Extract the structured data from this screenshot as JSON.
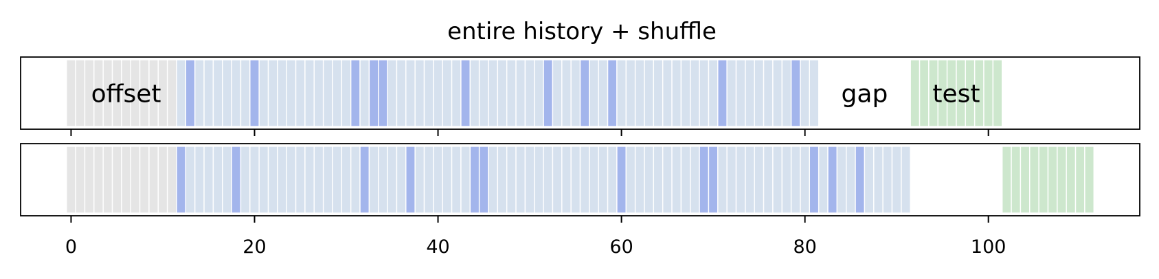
{
  "chart_data": {
    "type": "bar",
    "title": "entire history + shuffle",
    "xlim": [
      -5.5,
      116.5
    ],
    "xticks": [
      0,
      20,
      40,
      60,
      80,
      100
    ],
    "colors": {
      "offset": "#e5e5e5",
      "train": "#d6e1ee",
      "validation": "#a3b5ec",
      "test": "#cde7cd"
    },
    "panels": [
      {
        "annotations": [
          {
            "text": "offset",
            "x": 6
          },
          {
            "text": "gap",
            "x": 86.5
          },
          {
            "text": "test",
            "x": 96.5
          }
        ],
        "offset": [
          0,
          12
        ],
        "train": [
          12,
          82
        ],
        "validation_steps": [
          13,
          20,
          31,
          33,
          34,
          43,
          52,
          56,
          59,
          71,
          79
        ],
        "test": [
          92,
          102
        ]
      },
      {
        "annotations": [],
        "offset": [
          0,
          12
        ],
        "train": [
          12,
          92
        ],
        "validation_steps": [
          12,
          18,
          32,
          37,
          44,
          45,
          60,
          69,
          70,
          81,
          83,
          86
        ],
        "test": [
          102,
          112
        ]
      }
    ]
  }
}
